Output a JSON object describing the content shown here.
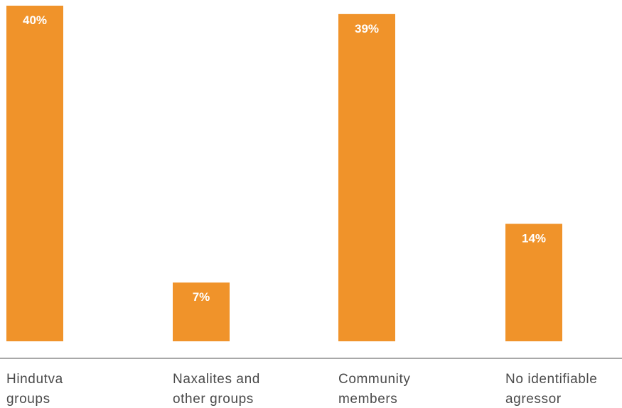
{
  "chart_data": {
    "type": "bar",
    "categories": [
      [
        "Hindutva",
        "groups"
      ],
      [
        "Naxalites and",
        "other groups"
      ],
      [
        "Community",
        "members"
      ],
      [
        "No identifiable",
        "agressor"
      ]
    ],
    "values": [
      40,
      7,
      39,
      14
    ],
    "value_labels": [
      "40%",
      "7%",
      "39%",
      "14%"
    ],
    "ylim": [
      0,
      40
    ],
    "grid": false,
    "legend": "none",
    "colors": {
      "bar": "#F0932A",
      "value_label": "#FFFFFF",
      "axis": "#8C8C8C",
      "category_label": "#4A4A4A"
    }
  }
}
